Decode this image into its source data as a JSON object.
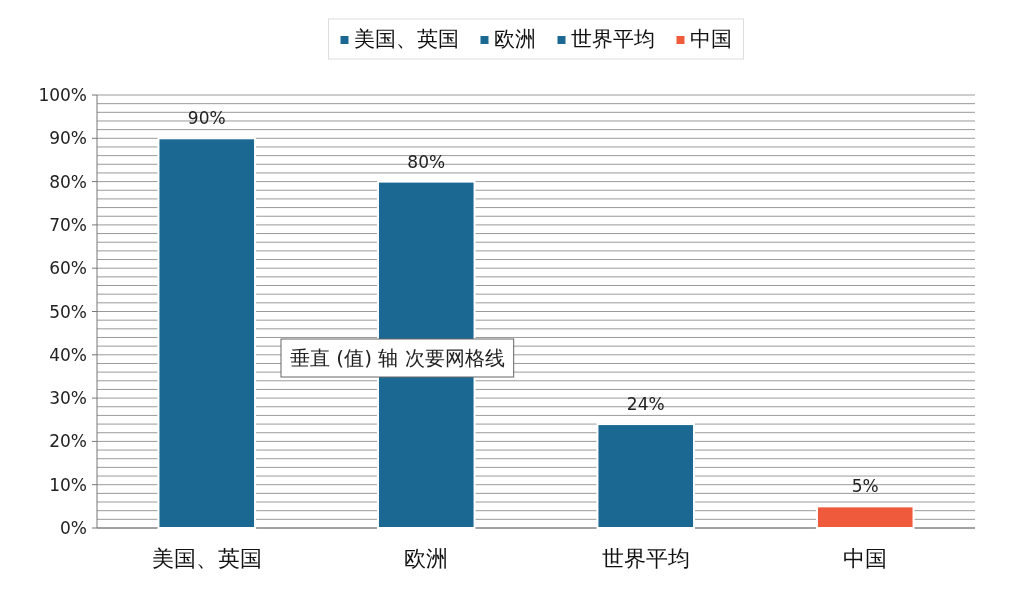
{
  "chart_data": {
    "type": "bar",
    "categories": [
      "美国、英国",
      "欧洲",
      "世界平均",
      "中国"
    ],
    "stacked": true,
    "series": [
      {
        "name": "美国、英国",
        "color": "#1b6892",
        "values": [
          90,
          null,
          null,
          null
        ],
        "value_labels": [
          "90%",
          null,
          null,
          null
        ]
      },
      {
        "name": "欧洲",
        "color": "#1b6892",
        "values": [
          null,
          80,
          null,
          null
        ],
        "value_labels": [
          null,
          "80%",
          null,
          null
        ]
      },
      {
        "name": "世界平均",
        "color": "#1b6892",
        "values": [
          null,
          null,
          24,
          null
        ],
        "value_labels": [
          null,
          null,
          "24%",
          null
        ]
      },
      {
        "name": "中国",
        "color": "#f05a3c",
        "values": [
          null,
          null,
          null,
          5
        ],
        "value_labels": [
          null,
          null,
          null,
          "5%"
        ]
      }
    ],
    "ylim": [
      0,
      100
    ],
    "yticks": [
      {
        "value": 0,
        "label": "0%"
      },
      {
        "value": 2,
        "label": null
      },
      {
        "value": 4,
        "label": null
      },
      {
        "value": 6,
        "label": null
      },
      {
        "value": 8,
        "label": null
      },
      {
        "value": 10,
        "label": "10%"
      },
      {
        "value": 12,
        "label": null
      },
      {
        "value": 14,
        "label": null
      },
      {
        "value": 16,
        "label": null
      },
      {
        "value": 18,
        "label": null
      },
      {
        "value": 20,
        "label": "20%"
      },
      {
        "value": 22,
        "label": null
      },
      {
        "value": 24,
        "label": null
      },
      {
        "value": 26,
        "label": null
      },
      {
        "value": 28,
        "label": null
      },
      {
        "value": 30,
        "label": "30%"
      },
      {
        "value": 32,
        "label": null
      },
      {
        "value": 34,
        "label": null
      },
      {
        "value": 36,
        "label": null
      },
      {
        "value": 38,
        "label": null
      },
      {
        "value": 40,
        "label": "40%"
      },
      {
        "value": 42,
        "label": null
      },
      {
        "value": 44,
        "label": null
      },
      {
        "value": 46,
        "label": null
      },
      {
        "value": 48,
        "label": null
      },
      {
        "value": 50,
        "label": "50%"
      },
      {
        "value": 52,
        "label": null
      },
      {
        "value": 54,
        "label": null
      },
      {
        "value": 56,
        "label": null
      },
      {
        "value": 58,
        "label": null
      },
      {
        "value": 60,
        "label": "60%"
      },
      {
        "value": 62,
        "label": null
      },
      {
        "value": 64,
        "label": null
      },
      {
        "value": 66,
        "label": null
      },
      {
        "value": 68,
        "label": null
      },
      {
        "value": 70,
        "label": "70%"
      },
      {
        "value": 72,
        "label": null
      },
      {
        "value": 74,
        "label": null
      },
      {
        "value": 76,
        "label": null
      },
      {
        "value": 78,
        "label": null
      },
      {
        "value": 80,
        "label": "80%"
      },
      {
        "value": 82,
        "label": null
      },
      {
        "value": 84,
        "label": null
      },
      {
        "value": 86,
        "label": null
      },
      {
        "value": 88,
        "label": null
      },
      {
        "value": 90,
        "label": "90%"
      },
      {
        "value": 92,
        "label": null
      },
      {
        "value": 94,
        "label": null
      },
      {
        "value": 96,
        "label": null
      },
      {
        "value": 98,
        "label": null
      },
      {
        "value": 100,
        "label": "100%"
      }
    ],
    "grid": "y",
    "legend": "top",
    "annotations": [
      "垂直 (值) 轴 次要网格线"
    ]
  }
}
